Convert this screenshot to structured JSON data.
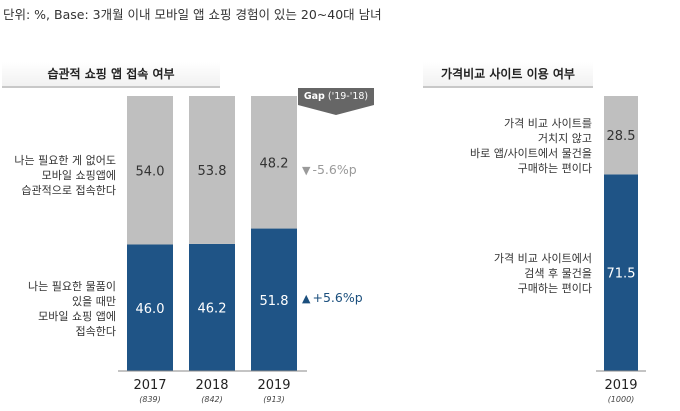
{
  "unit_note": "단위: %, Base: 3개월 이내 모바일 앱 쇼핑 경험이 있는 20~40대 남녀",
  "left_panel": {
    "title": "습관적 쇼핑 앱 접속 여부",
    "gap_badge": {
      "label": "Gap",
      "period": "('19-'18)"
    },
    "label_top": [
      "나는 필요한 게 없어도",
      "모바일 쇼핑앱에",
      "습관적으로 접속한다"
    ],
    "label_bottom": [
      "나는 필요한 물품이",
      "있을 때만",
      "모바일 쇼핑 앱에",
      "접속한다"
    ],
    "gap_top": {
      "arrow": "▼",
      "text": "-5.6%p"
    },
    "gap_bottom": {
      "arrow": "▲",
      "text": "+5.6%p"
    }
  },
  "right_panel": {
    "title": "가격비교 사이트 이용 여부",
    "label_top": [
      "가격 비교 사이트를",
      "거치지 않고",
      "바로 앱/사이트에서 물건을",
      "구매하는 편이다"
    ],
    "label_bottom": [
      "가격 비교 사이트에서",
      "검색 후 물건을",
      "구매하는 편이다"
    ]
  },
  "colors": {
    "top_segment": "#bfbfbf",
    "bottom_segment": "#1f5486",
    "top_text": "#333333",
    "bottom_text": "#ffffff"
  },
  "chart_data": [
    {
      "type": "bar",
      "stacked": true,
      "title": "습관적 쇼핑 앱 접속 여부",
      "categories": [
        "2017",
        "2018",
        "2019"
      ],
      "sample_sizes": [
        "(839)",
        "(842)",
        "(913)"
      ],
      "series": [
        {
          "name": "나는 필요한 물품이 있을 때만 모바일 쇼핑 앱에 접속한다",
          "values": [
            46.0,
            46.2,
            51.8
          ]
        },
        {
          "name": "나는 필요한 게 없어도 모바일 쇼핑앱에 습관적으로 접속한다",
          "values": [
            54.0,
            53.8,
            48.2
          ]
        }
      ],
      "ylim": [
        0,
        100
      ]
    },
    {
      "type": "bar",
      "stacked": true,
      "title": "가격비교 사이트 이용 여부",
      "categories": [
        "2019"
      ],
      "sample_sizes": [
        "(1000)"
      ],
      "series": [
        {
          "name": "가격 비교 사이트에서 검색 후 물건을 구매하는 편이다",
          "values": [
            71.5
          ]
        },
        {
          "name": "가격 비교 사이트를 거치지 않고 바로 앱/사이트에서 물건을 구매하는 편이다",
          "values": [
            28.5
          ]
        }
      ],
      "ylim": [
        0,
        100
      ]
    }
  ]
}
